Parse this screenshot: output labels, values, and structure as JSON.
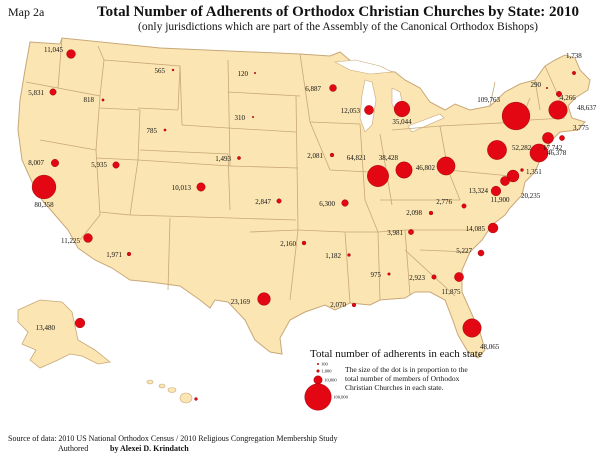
{
  "map_label": "Map 2a",
  "title": "Total Number of Adherents of Orthodox Christian Churches by State: 2010",
  "subtitle": "(only jurisdictions which are part of the Assembly of the Canonical Orthodox Bishops)",
  "colors": {
    "land": "#fbe5b2",
    "border": "#c8a878",
    "dot": "#e30613",
    "water": "#ffffff"
  },
  "states": [
    {
      "name": "WA",
      "value": "11,045",
      "v": 11045
    },
    {
      "name": "OR",
      "value": "5,831",
      "v": 5831
    },
    {
      "name": "CA",
      "value": "80,358",
      "v": 80358
    },
    {
      "name": "NV",
      "value": "8,007",
      "v": 8007
    },
    {
      "name": "ID",
      "value": "818",
      "v": 818
    },
    {
      "name": "UT",
      "value": "5,935",
      "v": 5935
    },
    {
      "name": "AZ",
      "value": "11,225",
      "v": 11225
    },
    {
      "name": "MT",
      "value": "565",
      "v": 565
    },
    {
      "name": "WY",
      "value": "785",
      "v": 785
    },
    {
      "name": "CO",
      "value": "10,013",
      "v": 10013
    },
    {
      "name": "NM",
      "value": "1,971",
      "v": 1971
    },
    {
      "name": "ND",
      "value": "120",
      "v": 120
    },
    {
      "name": "SD",
      "value": "310",
      "v": 310
    },
    {
      "name": "NE",
      "value": "1,493",
      "v": 1493
    },
    {
      "name": "KS",
      "value": "2,847",
      "v": 2847
    },
    {
      "name": "OK",
      "value": "2,160",
      "v": 2160
    },
    {
      "name": "TX",
      "value": "23,169",
      "v": 23169
    },
    {
      "name": "MN",
      "value": "6,887",
      "v": 6887
    },
    {
      "name": "IA",
      "value": "2,081",
      "v": 2081
    },
    {
      "name": "MO",
      "value": "6,300",
      "v": 6300
    },
    {
      "name": "AR",
      "value": "1,182",
      "v": 1182
    },
    {
      "name": "LA",
      "value": "2,070",
      "v": 2070
    },
    {
      "name": "WI",
      "value": "12,053",
      "v": 12053
    },
    {
      "name": "IL",
      "value": "64,821",
      "v": 64821
    },
    {
      "name": "MI",
      "value": "35,044",
      "v": 35044
    },
    {
      "name": "IN",
      "value": "38,428",
      "v": 38428
    },
    {
      "name": "OH",
      "value": "46,802",
      "v": 46802
    },
    {
      "name": "KY",
      "value": "2,098",
      "v": 2098
    },
    {
      "name": "TN",
      "value": "3,981",
      "v": 3981
    },
    {
      "name": "MS",
      "value": "975",
      "v": 975
    },
    {
      "name": "AL",
      "value": "2,923",
      "v": 2923
    },
    {
      "name": "GA",
      "value": "11,875",
      "v": 11875
    },
    {
      "name": "FL",
      "value": "48,065",
      "v": 48065
    },
    {
      "name": "SC",
      "value": "5,227",
      "v": 5227
    },
    {
      "name": "NC",
      "value": "14,085",
      "v": 14085
    },
    {
      "name": "VA",
      "value": "13,324",
      "v": 13324
    },
    {
      "name": "WV",
      "value": "2,776",
      "v": 2776
    },
    {
      "name": "PA",
      "value": "52,282",
      "v": 52282
    },
    {
      "name": "NY",
      "value": "109,763",
      "v": 109763
    },
    {
      "name": "VT",
      "value": "290",
      "v": 290
    },
    {
      "name": "NH",
      "value": "4,266",
      "v": 4266
    },
    {
      "name": "ME",
      "value": "1,738",
      "v": 1738
    },
    {
      "name": "MA",
      "value": "48,637",
      "v": 48637
    },
    {
      "name": "RI",
      "value": "3,775",
      "v": 3775
    },
    {
      "name": "CT",
      "value": "17,742",
      "v": 17742
    },
    {
      "name": "NJ",
      "value": "46,378",
      "v": 46378
    },
    {
      "name": "DE",
      "value": "1,351",
      "v": 1351
    },
    {
      "name": "MD",
      "value": "20,235",
      "v": 20235
    },
    {
      "name": "DC",
      "value": "11,900",
      "v": 11900
    },
    {
      "name": "AK",
      "value": "13,480",
      "v": 13480
    },
    {
      "name": "HI",
      "value": "",
      "v": 1200
    }
  ],
  "legend": {
    "title": "Total number of adherents in each state",
    "note_lines": [
      "The size of the dot is in proportion to the",
      "total number of members of Orthodox",
      "Christian Churches in each state."
    ],
    "samples": [
      {
        "value": "100",
        "v": 100
      },
      {
        "value": "1,000",
        "v": 1000
      },
      {
        "value": "10,000",
        "v": 10000
      },
      {
        "value": "100,000",
        "v": 100000
      }
    ]
  },
  "source": "Source of data: 2010 US National Orthodox Census / 2010 Religious Congregation Membership Study",
  "authored_prefix": "Authored",
  "author": "by Alexei D. Krindatch"
}
